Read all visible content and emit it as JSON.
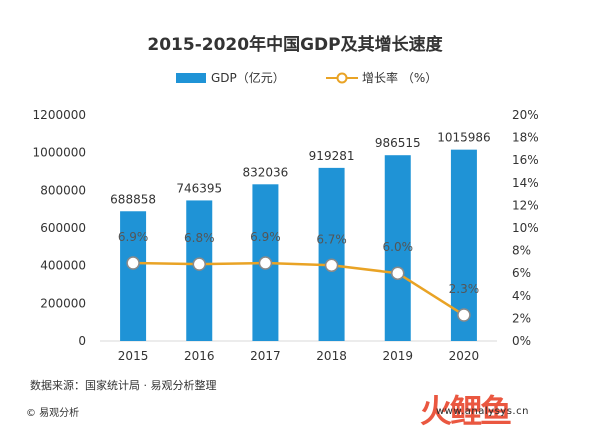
{
  "chart_data": {
    "type": "bar+line",
    "title": "2015-2020年中国GDP及其增长速度",
    "categories": [
      "2015",
      "2016",
      "2017",
      "2018",
      "2019",
      "2020"
    ],
    "series": [
      {
        "name": "GDP（亿元）",
        "type": "bar",
        "axis": "left",
        "values": [
          688858,
          746395,
          832036,
          919281,
          986515,
          1015986
        ],
        "labels": [
          "688858",
          "746395",
          "832036",
          "919281",
          "986515",
          "1015986"
        ],
        "color": "#1f93d6"
      },
      {
        "name": "增长率 （%）",
        "type": "line",
        "axis": "right",
        "values": [
          6.9,
          6.8,
          6.9,
          6.7,
          6.0,
          2.3
        ],
        "labels": [
          "6.9%",
          "6.8%",
          "6.9%",
          "6.7%",
          "6.0%",
          "2.3%"
        ],
        "color": "#e9a325"
      }
    ],
    "y_left": {
      "min": 0,
      "max": 1200000,
      "ticks": [
        "0",
        "200000",
        "400000",
        "600000",
        "800000",
        "1000000",
        "1200000"
      ]
    },
    "y_right": {
      "min": 0,
      "max": 20,
      "ticks": [
        "0%",
        "2%",
        "4%",
        "6%",
        "8%",
        "10%",
        "12%",
        "14%",
        "16%",
        "18%",
        "20%"
      ]
    },
    "legend_position": "top",
    "grid": false
  },
  "footer": {
    "source": "数据来源：国家统计局 · 易观分析整理",
    "copyright": "© 易观分析",
    "url": "www.analysys.cn"
  },
  "watermark": {
    "logo_text": "火鲤鱼"
  }
}
